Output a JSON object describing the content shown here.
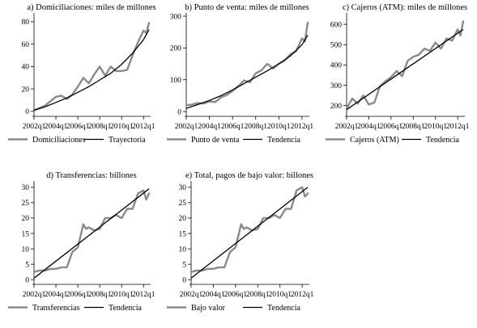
{
  "colors": {
    "actual": "#8a8a8a",
    "trend": "#000000"
  },
  "chart_data": [
    {
      "type": "line",
      "title": "a) Domiciliaciones: miles de millones",
      "x_ticks": [
        "2002q1",
        "2004q1",
        "2006q1",
        "2008q1",
        "2010q1",
        "2012q1"
      ],
      "xlim": [
        2002.0,
        2012.5
      ],
      "ylim": [
        -3,
        85
      ],
      "y_ticks": [
        0,
        20,
        40,
        60,
        80
      ],
      "grid": false,
      "legend_position": "bottom",
      "series": [
        {
          "name": "Domiciliaciones",
          "role": "actual",
          "x": [
            2002.0,
            2002.5,
            2003.0,
            2003.5,
            2004.0,
            2004.5,
            2005.0,
            2005.5,
            2006.0,
            2006.5,
            2007.0,
            2007.5,
            2008.0,
            2008.5,
            2009.0,
            2009.5,
            2010.0,
            2010.5,
            2011.0,
            2011.5,
            2012.0,
            2012.25,
            2012.5
          ],
          "y": [
            1,
            3,
            5,
            9,
            13,
            14,
            11,
            15,
            22,
            30,
            25,
            33,
            40,
            32,
            40,
            36,
            36,
            37,
            50,
            62,
            72,
            70,
            79
          ]
        },
        {
          "name": "Trayectoria",
          "role": "trend",
          "x": [
            2002.0,
            2003.0,
            2004.0,
            2005.0,
            2006.0,
            2007.0,
            2008.0,
            2009.0,
            2010.0,
            2011.0,
            2012.0,
            2012.5
          ],
          "y": [
            1,
            4,
            8,
            12,
            17,
            22,
            28,
            34,
            42,
            52,
            64,
            73
          ]
        }
      ]
    },
    {
      "type": "line",
      "title": "b) Punto de venta: miles de millones",
      "x_ticks": [
        "2002q1",
        "2004q1",
        "2006q1",
        "2008q1",
        "2010q1",
        "2012q1"
      ],
      "xlim": [
        2002.0,
        2012.5
      ],
      "ylim": [
        -10,
        300
      ],
      "y_ticks": [
        0,
        100,
        200,
        300
      ],
      "grid": false,
      "legend_position": "bottom",
      "series": [
        {
          "name": "Punto de venta",
          "role": "actual",
          "x": [
            2002.0,
            2002.5,
            2003.0,
            2003.5,
            2004.0,
            2004.5,
            2005.0,
            2005.5,
            2006.0,
            2006.5,
            2007.0,
            2007.5,
            2008.0,
            2008.5,
            2009.0,
            2009.5,
            2010.0,
            2010.5,
            2011.0,
            2011.5,
            2012.0,
            2012.25,
            2012.5
          ],
          "y": [
            20,
            22,
            27,
            25,
            32,
            30,
            45,
            52,
            65,
            80,
            98,
            92,
            120,
            130,
            150,
            135,
            150,
            160,
            180,
            190,
            230,
            220,
            280
          ]
        },
        {
          "name": "Tendencia",
          "role": "trend",
          "x": [
            2002.0,
            2003.0,
            2004.0,
            2005.0,
            2006.0,
            2007.0,
            2008.0,
            2009.0,
            2010.0,
            2011.0,
            2012.0,
            2012.5
          ],
          "y": [
            10,
            22,
            35,
            50,
            68,
            88,
            108,
            128,
            150,
            175,
            210,
            240
          ]
        }
      ]
    },
    {
      "type": "line",
      "title": "c) Cajeros (ATM): miles de millones",
      "x_ticks": [
        "2002q1",
        "2004q1",
        "2006q1",
        "2008q1",
        "2010q1",
        "2012q1"
      ],
      "xlim": [
        2002.0,
        2012.5
      ],
      "ylim": [
        155,
        640
      ],
      "y_ticks": [
        200,
        300,
        400,
        500,
        600
      ],
      "grid": false,
      "legend_position": "bottom",
      "series": [
        {
          "name": "Cajeros (ATM)",
          "role": "actual",
          "x": [
            2002.0,
            2002.5,
            2003.0,
            2003.5,
            2004.0,
            2004.5,
            2005.0,
            2005.5,
            2006.0,
            2006.5,
            2007.0,
            2007.5,
            2008.0,
            2008.5,
            2009.0,
            2009.5,
            2010.0,
            2010.5,
            2011.0,
            2011.5,
            2012.0,
            2012.25,
            2012.5
          ],
          "y": [
            185,
            235,
            210,
            250,
            205,
            215,
            295,
            320,
            340,
            370,
            345,
            420,
            440,
            450,
            480,
            470,
            510,
            480,
            530,
            520,
            575,
            545,
            615
          ]
        },
        {
          "name": "Tendencia",
          "role": "trend",
          "x": [
            2002.0,
            2012.5
          ],
          "y": [
            180,
            575
          ]
        }
      ]
    },
    {
      "type": "line",
      "title": "d) Transferencias: billones",
      "x_ticks": [
        "2002q1",
        "2004q1",
        "2006q1",
        "2008q1",
        "2010q1",
        "2012q1"
      ],
      "xlim": [
        2002.0,
        2012.5
      ],
      "ylim": [
        -1,
        31
      ],
      "y_ticks": [
        0,
        5,
        10,
        15,
        20,
        25,
        30
      ],
      "grid": false,
      "legend_position": "bottom",
      "series": [
        {
          "name": "Transferencias",
          "role": "actual",
          "x": [
            2002.0,
            2002.5,
            2003.0,
            2003.5,
            2004.0,
            2004.5,
            2005.0,
            2005.5,
            2006.0,
            2006.5,
            2006.75,
            2007.0,
            2007.5,
            2008.0,
            2008.5,
            2009.0,
            2009.5,
            2010.0,
            2010.5,
            2011.0,
            2011.5,
            2012.0,
            2012.25,
            2012.5
          ],
          "y": [
            2.5,
            3,
            3,
            3.5,
            3.5,
            4,
            4,
            9,
            10.5,
            18,
            16.5,
            17,
            16,
            16.5,
            20,
            20,
            21,
            20,
            23,
            23,
            28,
            29,
            26,
            28
          ]
        },
        {
          "name": "Tendencia",
          "role": "trend",
          "x": [
            2002.0,
            2012.5
          ],
          "y": [
            0.5,
            29.5
          ]
        }
      ]
    },
    {
      "type": "line",
      "title": "e) Total, pagos de bajo valor: billones",
      "x_ticks": [
        "2002q1",
        "2004q1",
        "2006q1",
        "2008q1",
        "2010q1",
        "2012q1"
      ],
      "xlim": [
        2002.0,
        2012.5
      ],
      "ylim": [
        -1,
        31
      ],
      "y_ticks": [
        0,
        5,
        10,
        15,
        20,
        25,
        30
      ],
      "grid": false,
      "legend_position": "bottom",
      "series": [
        {
          "name": "Bajo valor",
          "role": "actual",
          "x": [
            2002.0,
            2002.5,
            2003.0,
            2003.5,
            2004.0,
            2004.5,
            2005.0,
            2005.5,
            2006.0,
            2006.5,
            2006.75,
            2007.0,
            2007.5,
            2008.0,
            2008.5,
            2009.0,
            2009.5,
            2010.0,
            2010.5,
            2011.0,
            2011.5,
            2012.0,
            2012.25,
            2012.5
          ],
          "y": [
            2.5,
            3,
            3,
            3.5,
            3.5,
            4,
            4,
            9,
            10.5,
            18,
            16.5,
            17,
            16,
            16.5,
            20,
            20,
            21,
            20,
            23,
            23,
            29,
            30,
            27,
            28
          ]
        },
        {
          "name": "Tendencia",
          "role": "trend",
          "x": [
            2002.0,
            2012.5
          ],
          "y": [
            0.5,
            30
          ]
        }
      ]
    }
  ]
}
